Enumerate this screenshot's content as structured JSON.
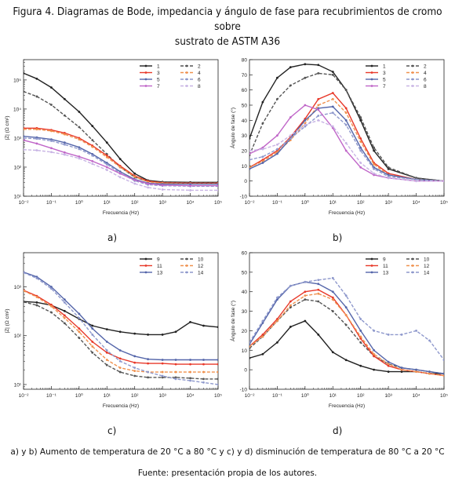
{
  "title_line1": "Figura 4. Diagramas de Bode, impedancia y ángulo de fase para recubrimientos de cromo sobre",
  "title_line2": "sustrato de ASTM A36",
  "caption": "a) y b) Aumento de temperatura de 20 °C a 80 °C y c) y d) disminución de temperatura de 80 °C a 20 °C",
  "source": "Fuente: presentación propia de los autores.",
  "colors": {
    "black": "#222222",
    "dark_gray": "#555555",
    "red": "#e8392a",
    "orange": "#f0914e",
    "blue": "#5566aa",
    "light_blue": "#8e98cc",
    "magenta": "#c066c8",
    "light_purple": "#c8b4e4"
  },
  "chart_data": [
    {
      "panel": "a)",
      "type": "line",
      "xlabel": "Frecuencia (Hz)",
      "ylabel": "|Z| (Ω cm²)",
      "xscale": "log",
      "yscale": "log",
      "xlim": [
        0.01,
        100000
      ],
      "ylim": [
        10,
        500000
      ],
      "xtick_labels": [
        "10⁻²",
        "10⁻¹",
        "10⁰",
        "10¹",
        "10²",
        "10³",
        "10⁴",
        "10⁵"
      ],
      "ytick_labels": [
        "10¹",
        "10²",
        "10³",
        "10⁴",
        "10⁵"
      ],
      "x": [
        0.01,
        0.03,
        0.1,
        0.3,
        1,
        3,
        10,
        30,
        100,
        300,
        1000,
        10000,
        100000
      ],
      "legend_position": "top-right",
      "series": [
        {
          "name": "1",
          "color": "black",
          "values": [
            170000,
            110000,
            55000,
            22000,
            8000,
            2600,
            700,
            190,
            60,
            35,
            31,
            30,
            30
          ]
        },
        {
          "name": "2",
          "color": "dark_gray",
          "values": [
            40000,
            27000,
            14000,
            6000,
            2400,
            850,
            280,
            100,
            45,
            32,
            30,
            29,
            29
          ]
        },
        {
          "name": "3",
          "color": "red",
          "values": [
            2200,
            2200,
            1900,
            1500,
            1000,
            550,
            250,
            110,
            50,
            33,
            29,
            28,
            28
          ]
        },
        {
          "name": "4",
          "color": "orange",
          "values": [
            2000,
            2000,
            1750,
            1350,
            900,
            500,
            220,
            100,
            47,
            31,
            28,
            27,
            27
          ]
        },
        {
          "name": "5",
          "color": "blue",
          "values": [
            1150,
            1050,
            900,
            700,
            480,
            280,
            140,
            70,
            38,
            28,
            26,
            26,
            26
          ]
        },
        {
          "name": "6",
          "color": "light_blue",
          "values": [
            1000,
            950,
            800,
            600,
            420,
            250,
            125,
            63,
            34,
            25,
            23,
            22,
            22
          ]
        },
        {
          "name": "7",
          "color": "magenta",
          "values": [
            850,
            650,
            450,
            320,
            230,
            160,
            100,
            60,
            36,
            27,
            24,
            23,
            23
          ]
        },
        {
          "name": "8",
          "color": "light_purple",
          "values": [
            400,
            380,
            330,
            270,
            200,
            130,
            80,
            45,
            27,
            20,
            17,
            16,
            16
          ]
        }
      ]
    },
    {
      "panel": "b)",
      "type": "line",
      "xlabel": "Frecuencia (Hz)",
      "ylabel": "Ángulo de fase (°)",
      "xscale": "log",
      "xlim": [
        0.01,
        100000
      ],
      "ylim": [
        -10,
        80
      ],
      "xtick_labels": [
        "10⁻²",
        "10⁻¹",
        "10⁰",
        "10¹",
        "10²",
        "10³",
        "10⁴",
        "10⁵"
      ],
      "ytick_labels": [
        "-10",
        "0",
        "10",
        "20",
        "30",
        "40",
        "50",
        "60",
        "70",
        "80"
      ],
      "x": [
        0.01,
        0.03,
        0.1,
        0.3,
        1,
        3,
        10,
        30,
        100,
        300,
        1000,
        10000,
        100000
      ],
      "legend_position": "top-right",
      "series": [
        {
          "name": "1",
          "color": "black",
          "values": [
            28,
            52,
            68,
            75,
            77,
            76.5,
            72,
            60,
            40,
            20,
            8,
            2,
            0
          ]
        },
        {
          "name": "2",
          "color": "dark_gray",
          "values": [
            17,
            38,
            54,
            63,
            68,
            71,
            70,
            60,
            42,
            22,
            9,
            2,
            0
          ]
        },
        {
          "name": "3",
          "color": "red",
          "values": [
            9,
            14,
            20,
            29,
            41,
            54,
            58,
            48,
            28,
            12,
            5,
            1,
            0
          ]
        },
        {
          "name": "4",
          "color": "orange",
          "values": [
            9,
            13,
            19,
            27,
            38,
            50,
            54,
            45,
            26,
            11,
            4,
            1,
            0
          ]
        },
        {
          "name": "5",
          "color": "blue",
          "values": [
            8,
            12,
            18,
            28,
            40,
            48,
            49,
            40,
            22,
            9,
            4,
            1,
            0
          ]
        },
        {
          "name": "6",
          "color": "light_blue",
          "values": [
            14,
            16,
            21,
            28,
            36,
            43,
            45,
            37,
            20,
            8,
            3,
            1,
            0
          ]
        },
        {
          "name": "7",
          "color": "magenta",
          "values": [
            18,
            22,
            30,
            42,
            50,
            47,
            35,
            20,
            9,
            4,
            2,
            0,
            0
          ]
        },
        {
          "name": "8",
          "color": "light_purple",
          "values": [
            20,
            21,
            24,
            30,
            37,
            40,
            36,
            25,
            12,
            5,
            2,
            0,
            0
          ]
        }
      ]
    },
    {
      "panel": "c)",
      "type": "line",
      "xlabel": "Frecuencia (Hz)",
      "ylabel": "|Z| (Ω cm²)",
      "xscale": "log",
      "yscale": "log",
      "xlim": [
        0.01,
        100000
      ],
      "ylim": [
        8,
        5000
      ],
      "xtick_labels": [
        "10⁻²",
        "10⁻¹",
        "10⁰",
        "10¹",
        "10²",
        "10³",
        "10⁴",
        "10⁵"
      ],
      "ytick_labels": [
        "10¹",
        "10²",
        "10³"
      ],
      "x": [
        0.01,
        0.03,
        0.1,
        0.3,
        1,
        3,
        10,
        30,
        100,
        300,
        1000,
        3000,
        10000,
        30000,
        100000
      ],
      "legend_position": "top-right",
      "series": [
        {
          "name": "9",
          "color": "black",
          "values": [
            500,
            480,
            420,
            320,
            220,
            160,
            135,
            120,
            110,
            105,
            105,
            120,
            190,
            160,
            150
          ]
        },
        {
          "name": "10",
          "color": "dark_gray",
          "values": [
            490,
            420,
            300,
            180,
            90,
            45,
            25,
            18,
            15,
            14,
            14,
            14,
            13.5,
            13,
            13
          ]
        },
        {
          "name": "11",
          "color": "red",
          "values": [
            850,
            650,
            430,
            260,
            140,
            75,
            45,
            34,
            28,
            27,
            27,
            26,
            26,
            26,
            26
          ]
        },
        {
          "name": "12",
          "color": "orange",
          "values": [
            830,
            620,
            400,
            230,
            120,
            60,
            32,
            22,
            19,
            18,
            18,
            18,
            18,
            18,
            18
          ]
        },
        {
          "name": "13",
          "color": "blue",
          "values": [
            2000,
            1600,
            1000,
            550,
            280,
            140,
            75,
            50,
            38,
            33,
            32,
            32,
            32,
            32,
            32
          ]
        },
        {
          "name": "14",
          "color": "light_blue",
          "values": [
            1950,
            1500,
            920,
            480,
            230,
            105,
            50,
            30,
            22,
            18,
            15,
            13,
            12,
            11,
            10
          ]
        }
      ]
    },
    {
      "panel": "d)",
      "type": "line",
      "xlabel": "Frecuencia (Hz)",
      "ylabel": "Ángulo de fase (°)",
      "xscale": "log",
      "xlim": [
        0.01,
        100000
      ],
      "ylim": [
        -10,
        60
      ],
      "xtick_labels": [
        "10⁻²",
        "10⁻¹",
        "10⁰",
        "10¹",
        "10²",
        "10³",
        "10⁴",
        "10⁵"
      ],
      "ytick_labels": [
        "-10",
        "0",
        "10",
        "20",
        "30",
        "40",
        "50",
        "60"
      ],
      "x": [
        0.01,
        0.03,
        0.1,
        0.3,
        1,
        3,
        10,
        30,
        100,
        300,
        1000,
        3000,
        10000,
        30000,
        100000
      ],
      "legend_position": "top-right",
      "series": [
        {
          "name": "9",
          "color": "black",
          "values": [
            6,
            8,
            14,
            22,
            25,
            18,
            9,
            5,
            2,
            0,
            -1,
            -1,
            -1,
            -2,
            -2
          ]
        },
        {
          "name": "10",
          "color": "dark_gray",
          "values": [
            11,
            17,
            25,
            32,
            36,
            35,
            30,
            23,
            14,
            7,
            3,
            1,
            0,
            -1,
            -2
          ]
        },
        {
          "name": "11",
          "color": "red",
          "values": [
            12,
            18,
            26,
            35,
            40,
            41,
            37,
            28,
            16,
            7,
            2,
            0,
            -1,
            -2,
            -3
          ]
        },
        {
          "name": "12",
          "color": "orange",
          "values": [
            12,
            17,
            25,
            33,
            38,
            39,
            36,
            28,
            17,
            8,
            3,
            0,
            -1,
            -2,
            -3
          ]
        },
        {
          "name": "13",
          "color": "blue",
          "values": [
            13,
            24,
            36,
            43,
            45,
            44,
            40,
            32,
            20,
            10,
            4,
            1,
            0,
            -1,
            -2
          ]
        },
        {
          "name": "14",
          "color": "light_blue",
          "values": [
            14,
            25,
            37,
            43,
            45,
            46,
            47,
            38,
            26,
            20,
            18,
            18,
            20,
            15,
            5
          ]
        }
      ]
    }
  ]
}
